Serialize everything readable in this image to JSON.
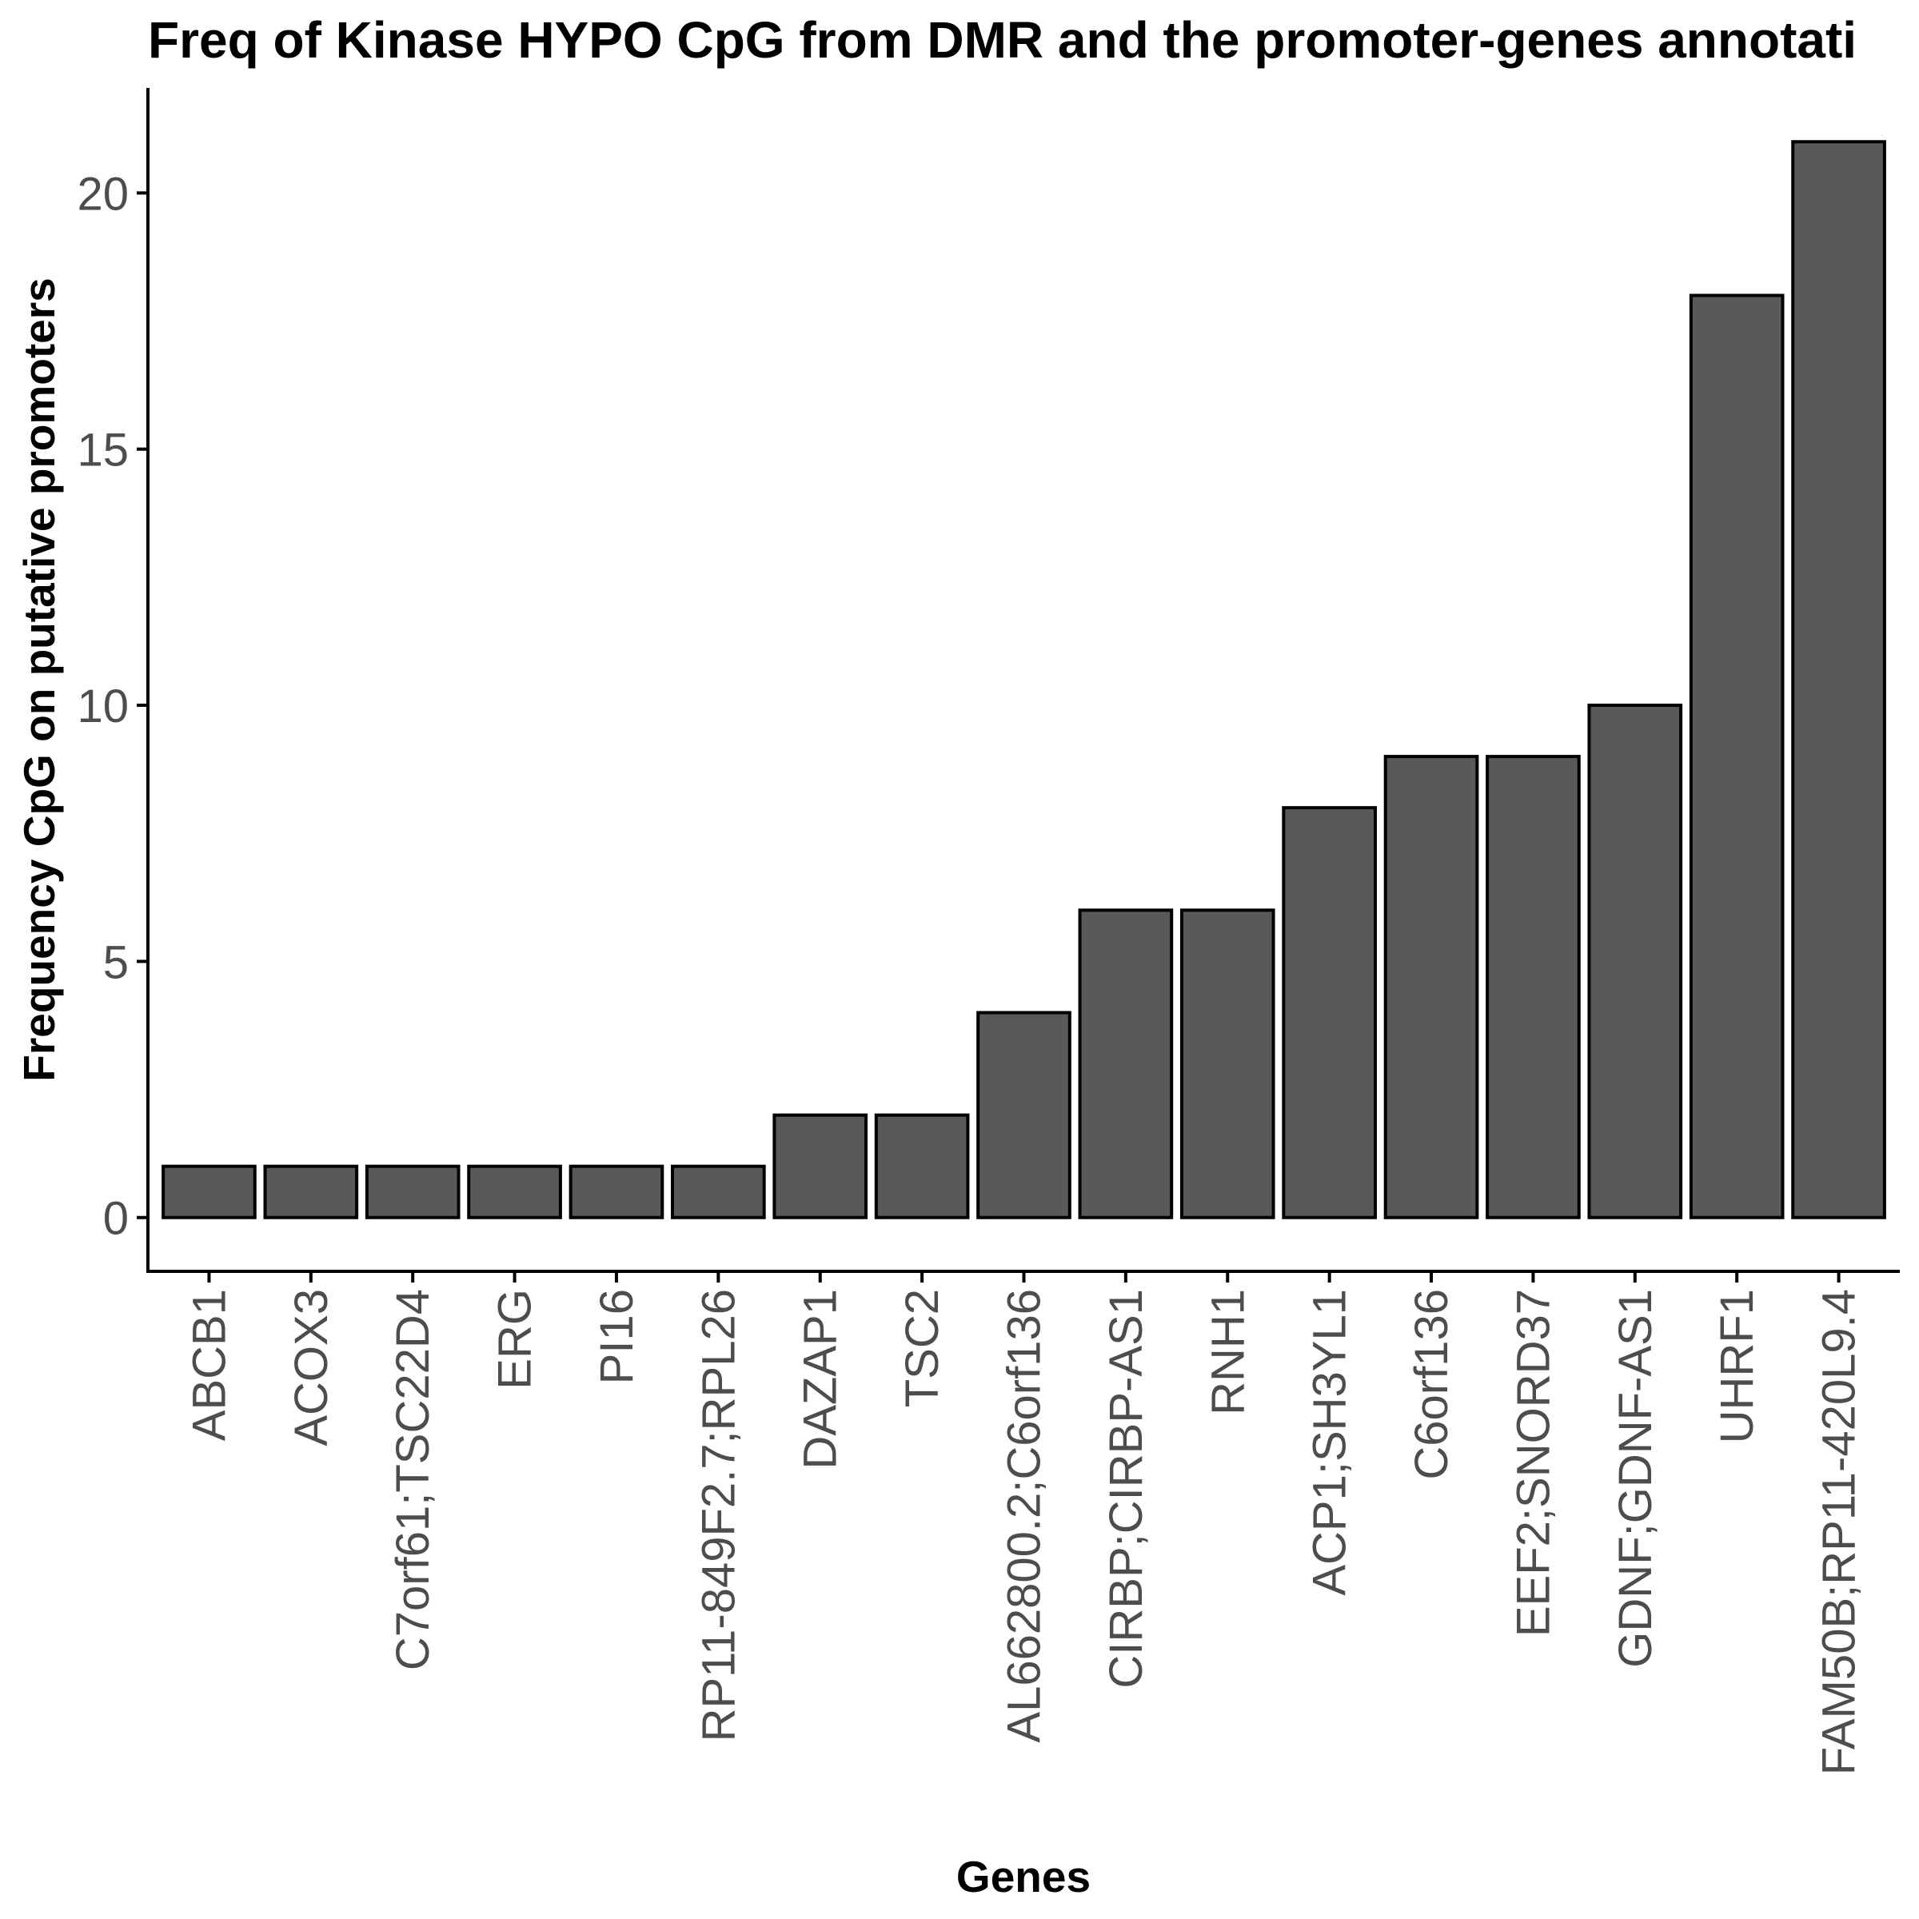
{
  "chart_data": {
    "type": "bar",
    "title": "Freq of Kinase HYPO CpG from DMR and the promoter-genes annotati",
    "xlabel": "Genes",
    "ylabel": "Frequency CpG on putative promoters",
    "categories": [
      "ABCB1",
      "ACOX3",
      "C7orf61;TSC22D4",
      "ERG",
      "PI16",
      "RP11-849F2.7;RPL26",
      "DAZAP1",
      "TSC2",
      "AL662800.2;C6orf136",
      "CIRBP;CIRBP-AS1",
      "RNH1",
      "ACP1;SH3YL1",
      "C6orf136",
      "EEF2;SNORD37",
      "GDNF;GDNF-AS1",
      "UHRF1",
      "FAM50B;RP11-420L9.4"
    ],
    "values": [
      1,
      1,
      1,
      1,
      1,
      1,
      2,
      2,
      4,
      6,
      6,
      8,
      9,
      9,
      10,
      18,
      21
    ],
    "yticks": [
      0,
      5,
      10,
      15,
      20
    ],
    "ylim": [
      -1.05,
      22.05
    ],
    "grid": false,
    "legend": "none",
    "colors": {
      "bar_fill": "#595959",
      "bar_stroke": "#000000",
      "tick_text": "#4d4d4d"
    }
  }
}
